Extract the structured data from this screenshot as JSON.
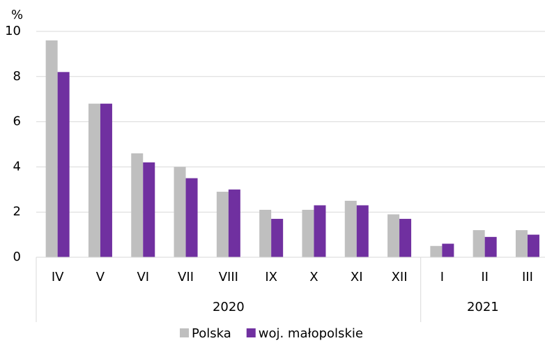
{
  "chart_data": {
    "type": "bar",
    "y_unit": "%",
    "groups": [
      {
        "label": "2020",
        "categories": [
          "IV",
          "V",
          "VI",
          "VII",
          "VIII",
          "IX",
          "X",
          "XI",
          "XII"
        ]
      },
      {
        "label": "2021",
        "categories": [
          "I",
          "II",
          "III"
        ]
      }
    ],
    "series": [
      {
        "name": "Polska",
        "color": "#bfbfbf",
        "values": [
          9.6,
          6.8,
          4.6,
          4.0,
          2.9,
          2.1,
          2.1,
          2.5,
          1.9,
          0.5,
          1.2,
          1.2
        ]
      },
      {
        "name": "woj. małopolskie",
        "color": "#7030a0",
        "values": [
          8.2,
          6.8,
          4.2,
          3.5,
          3.0,
          1.7,
          2.3,
          2.3,
          1.7,
          0.6,
          0.9,
          1.0
        ]
      }
    ],
    "ylim": [
      0,
      10
    ],
    "yticks": [
      0,
      2,
      4,
      6,
      8,
      10
    ],
    "grid": true
  }
}
